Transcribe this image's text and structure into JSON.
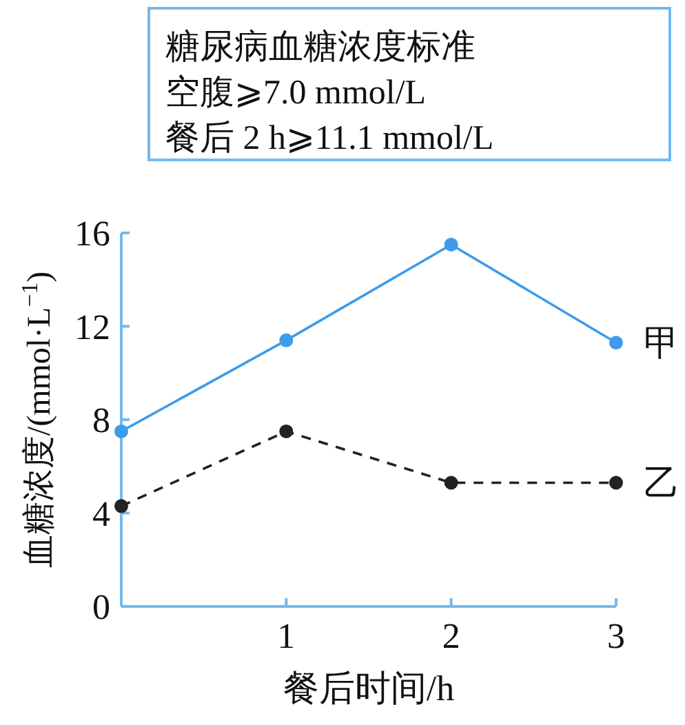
{
  "chart_data": {
    "type": "line",
    "xlabel": "餐后时间/h",
    "ylabel": "血糖浓度/(mmol·L$^{−1}$)",
    "annotations": [
      "糖尿病血糖浓度标准",
      "空腹⩾7.0  mmol/L",
      "餐后 2 h⩾11.1 mmol/L"
    ],
    "x": [
      0,
      1,
      2,
      3
    ],
    "series": [
      {
        "name": "甲",
        "color": "#3d9be9",
        "values": [
          7.5,
          11.4,
          15.5,
          11.3
        ],
        "line_style": "solid"
      },
      {
        "name": "乙",
        "color": "#222222",
        "values": [
          4.3,
          7.5,
          5.3,
          5.3
        ],
        "line_style": "dashed"
      }
    ],
    "xlim": [
      0,
      3
    ],
    "xticks": [
      1,
      2,
      3
    ],
    "ylim": [
      0,
      16
    ],
    "yticks": [
      0,
      4,
      8,
      12,
      16
    ],
    "marker": "circle",
    "grid": false,
    "legend": false
  }
}
